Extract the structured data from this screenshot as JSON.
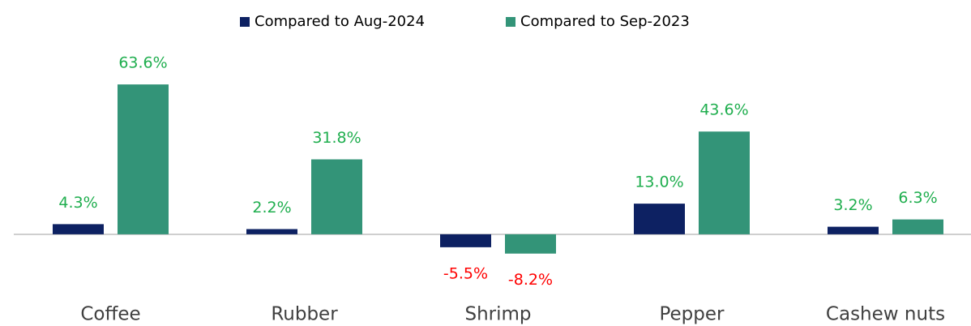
{
  "chart_data": {
    "type": "bar",
    "categories": [
      "Coffee",
      "Rubber",
      "Shrimp",
      "Pepper",
      "Cashew nuts"
    ],
    "series": [
      {
        "name": "Compared to Aug-2024",
        "color": "#0d2162",
        "values": [
          4.3,
          2.2,
          -5.5,
          13.0,
          3.2
        ],
        "value_labels": [
          "4.3%",
          "2.2%",
          "-5.5%",
          "13.0%",
          "3.2%"
        ]
      },
      {
        "name": "Compared to Sep-2023",
        "color": "#339478",
        "values": [
          63.6,
          31.8,
          -8.2,
          43.6,
          6.3
        ],
        "value_labels": [
          "63.6%",
          "31.8%",
          "-8.2%",
          "43.6%",
          "6.3%"
        ]
      }
    ],
    "ylim": [
      -20,
      75
    ],
    "legend": "top"
  }
}
